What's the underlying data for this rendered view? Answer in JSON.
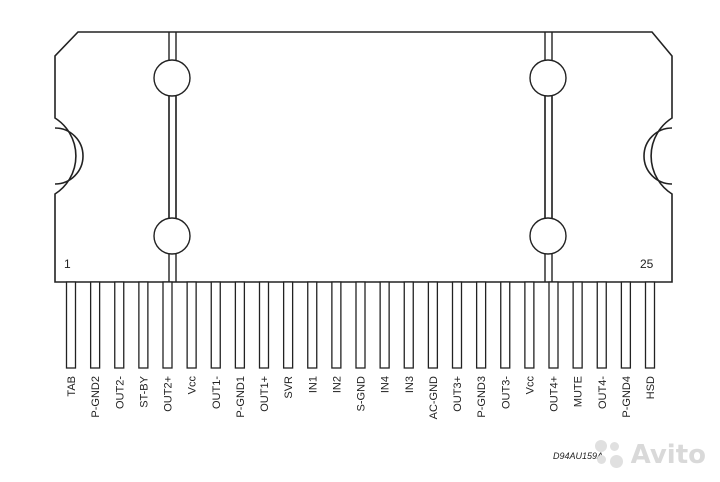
{
  "package": {
    "corner_left": "1",
    "corner_right": "25",
    "drawing_code": "D94AU159A"
  },
  "pins": [
    "TAB",
    "P-GND2",
    "OUT2-",
    "ST-BY",
    "OUT2+",
    "Vcc",
    "OUT1-",
    "P-GND1",
    "OUT1+",
    "SVR",
    "IN1",
    "IN2",
    "S-GND",
    "IN4",
    "IN3",
    "AC-GND",
    "OUT3+",
    "P-GND3",
    "OUT3-",
    "Vcc",
    "OUT4+",
    "MUTE",
    "OUT4-",
    "P-GND4",
    "HSD"
  ],
  "watermark": {
    "text": "Avito"
  },
  "colors": {
    "line": "#222222",
    "watermark": "#d9d9d9"
  }
}
